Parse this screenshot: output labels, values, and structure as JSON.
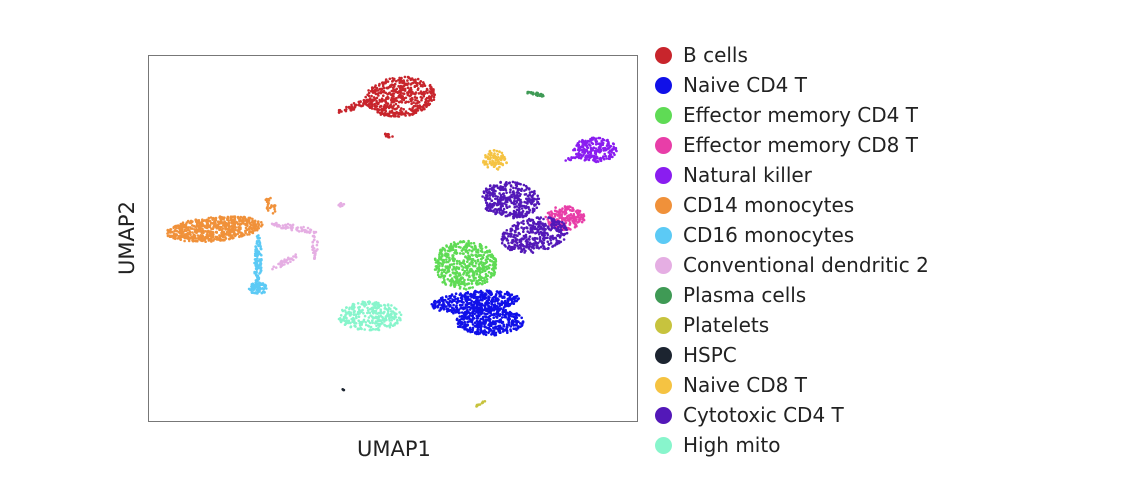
{
  "chart_data": {
    "type": "scatter",
    "xlabel": "UMAP1",
    "ylabel": "UMAP2",
    "xlim": [
      0,
      20
    ],
    "ylim": [
      0,
      15
    ],
    "grid": false,
    "ticks": false,
    "legend_placement": "right",
    "series": [
      {
        "name": "B cells",
        "color": "#c8252c",
        "clusters": [
          {
            "cx": 10.31,
            "cy": 13.28,
            "rx": 1.43,
            "ry": 0.82,
            "rot": 5,
            "n": 500
          },
          {
            "cx": 8.47,
            "cy": 12.91,
            "rx": 0.8,
            "ry": 0.12,
            "rot": 20,
            "n": 60
          },
          {
            "cx": 9.86,
            "cy": 11.68,
            "rx": 0.2,
            "ry": 0.08,
            "rot": -30,
            "n": 15
          }
        ]
      },
      {
        "name": "Naive CD4 T",
        "color": "#1010e8",
        "clusters": [
          {
            "cx": 13.37,
            "cy": 4.88,
            "rx": 1.8,
            "ry": 0.45,
            "rot": 5,
            "n": 450
          },
          {
            "cx": 13.99,
            "cy": 4.06,
            "rx": 1.4,
            "ry": 0.55,
            "rot": 0,
            "n": 400
          }
        ]
      },
      {
        "name": "Effector memory CD4 T",
        "color": "#5fdb55",
        "clusters": [
          {
            "cx": 12.97,
            "cy": 6.39,
            "rx": 1.3,
            "ry": 1.0,
            "rot": 0,
            "n": 500
          }
        ]
      },
      {
        "name": "Effector memory CD8 T",
        "color": "#e83ea8",
        "clusters": [
          {
            "cx": 17.06,
            "cy": 8.32,
            "rx": 0.8,
            "ry": 0.5,
            "rot": 0,
            "n": 200
          }
        ]
      },
      {
        "name": "Natural killer",
        "color": "#8a1df0",
        "clusters": [
          {
            "cx": 18.28,
            "cy": 11.11,
            "rx": 0.9,
            "ry": 0.5,
            "rot": 0,
            "n": 220
          },
          {
            "cx": 17.3,
            "cy": 10.75,
            "rx": 0.25,
            "ry": 0.06,
            "rot": 15,
            "n": 12
          }
        ]
      },
      {
        "name": "CD14 monocytes",
        "color": "#f0913a",
        "clusters": [
          {
            "cx": 2.74,
            "cy": 7.87,
            "rx": 2.0,
            "ry": 0.5,
            "rot": 5,
            "n": 600
          },
          {
            "cx": 4.99,
            "cy": 8.85,
            "rx": 0.2,
            "ry": 0.4,
            "rot": 20,
            "n": 25
          }
        ]
      },
      {
        "name": "CD16 monocytes",
        "color": "#5ccaf5",
        "clusters": [
          {
            "cx": 4.5,
            "cy": 6.52,
            "rx": 0.15,
            "ry": 1.1,
            "rot": 0,
            "n": 120
          },
          {
            "cx": 4.5,
            "cy": 5.45,
            "rx": 0.4,
            "ry": 0.25,
            "rot": 0,
            "n": 80
          }
        ]
      },
      {
        "name": "Conventional dendritic 2",
        "color": "#e5aee3",
        "clusters": [
          {
            "cx": 6.01,
            "cy": 7.91,
            "rx": 1.0,
            "ry": 0.12,
            "rot": -10,
            "n": 60
          },
          {
            "cx": 6.83,
            "cy": 7.21,
            "rx": 0.12,
            "ry": 0.6,
            "rot": 0,
            "n": 35
          },
          {
            "cx": 5.6,
            "cy": 6.52,
            "rx": 0.6,
            "ry": 0.12,
            "rot": 30,
            "n": 35
          },
          {
            "cx": 7.93,
            "cy": 8.89,
            "rx": 0.15,
            "ry": 0.08,
            "rot": 30,
            "n": 8
          }
        ]
      },
      {
        "name": "Plasma cells",
        "color": "#3f9a55",
        "clusters": [
          {
            "cx": 15.83,
            "cy": 13.4,
            "rx": 0.4,
            "ry": 0.08,
            "rot": -15,
            "n": 25
          }
        ]
      },
      {
        "name": "Platelets",
        "color": "#c7c33e",
        "clusters": [
          {
            "cx": 13.58,
            "cy": 0.7,
            "rx": 0.25,
            "ry": 0.04,
            "rot": 30,
            "n": 12
          }
        ]
      },
      {
        "name": "HSPC",
        "color": "#1c2430",
        "clusters": [
          {
            "cx": 7.98,
            "cy": 1.27,
            "rx": 0.04,
            "ry": 0.04,
            "rot": 0,
            "n": 3
          }
        ]
      },
      {
        "name": "Naive CD8 T",
        "color": "#f5c342",
        "clusters": [
          {
            "cx": 14.19,
            "cy": 10.7,
            "rx": 0.5,
            "ry": 0.4,
            "rot": 0,
            "n": 90
          }
        ]
      },
      {
        "name": "Cytotoxic CD4 T",
        "color": "#5318b8",
        "clusters": [
          {
            "cx": 14.81,
            "cy": 9.06,
            "rx": 1.2,
            "ry": 0.75,
            "rot": -5,
            "n": 380
          },
          {
            "cx": 15.83,
            "cy": 7.62,
            "rx": 1.4,
            "ry": 0.7,
            "rot": 10,
            "n": 380
          }
        ]
      },
      {
        "name": "High mito",
        "color": "#88f5cc",
        "clusters": [
          {
            "cx": 9.08,
            "cy": 4.3,
            "rx": 1.3,
            "ry": 0.6,
            "rot": 0,
            "n": 300
          }
        ]
      }
    ]
  }
}
